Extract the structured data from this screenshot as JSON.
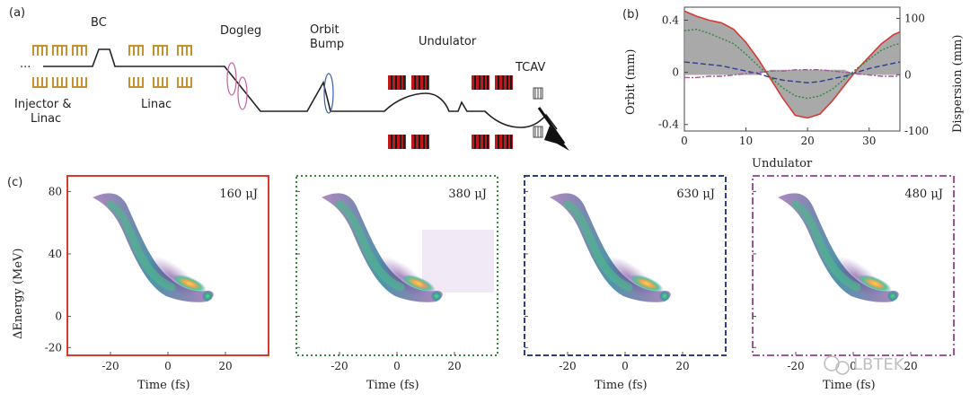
{
  "panel_a": {
    "label": "(a)",
    "dots": "···",
    "bc": "BC",
    "injector_line1": "Injector &",
    "injector_line2": "Linac",
    "linac": "Linac",
    "dogleg": "Dogleg",
    "orbit_bump_line1": "Orbit",
    "orbit_bump_line2": "Bump",
    "undulator": "Undulator",
    "tcav": "TCAV",
    "colors": {
      "beamline": "#222222",
      "cavity": "#c8912f",
      "magnet": "#c0171b",
      "dogleg_ring": "#c45fa0",
      "bump_ring": "#3b5fa8"
    }
  },
  "panel_b": {
    "label": "(b)",
    "xlabel": "Undulator",
    "ylabel_left": "Orbit (mm)",
    "ylabel_right": "Dispersion (mm)",
    "xticks": [
      "0",
      "10",
      "20",
      "30"
    ],
    "yticks_left": [
      "0.4",
      "0",
      "-0.4"
    ],
    "yticks_right": [
      "100",
      "0",
      "-100"
    ]
  },
  "panel_c": {
    "label": "(c)",
    "ylabel": "ΔEnergy (MeV)",
    "xlabel": "Time (fs)",
    "yticks": [
      "80",
      "40",
      "0",
      "-20"
    ],
    "xticks": [
      "-20",
      "0",
      "20"
    ],
    "plots": [
      {
        "energy": "160 μJ",
        "frame_color": "#d93a30",
        "frame_style": "solid"
      },
      {
        "energy": "380 μJ",
        "frame_color": "#2f8a3c",
        "frame_style": "dotted"
      },
      {
        "energy": "630 μJ",
        "frame_color": "#2c3f8f",
        "frame_style": "dashed"
      },
      {
        "energy": "480 μJ",
        "frame_color": "#a3559c",
        "frame_style": "dashdot"
      }
    ]
  },
  "watermark": "LBTEK",
  "chart_data": [
    {
      "type": "line",
      "title": "",
      "xlabel": "Undulator",
      "ylabel": "Orbit (mm)",
      "ylabel_right": "Dispersion (mm)",
      "xlim": [
        0,
        35
      ],
      "ylim": [
        -0.45,
        0.5
      ],
      "ylim_right": [
        -100,
        120
      ],
      "x": [
        0,
        2,
        4,
        6,
        8,
        10,
        12,
        14,
        16,
        18,
        20,
        22,
        24,
        26,
        28,
        30,
        32,
        34,
        35
      ],
      "series": [
        {
          "color": "#d63a33",
          "axis": "left",
          "values": [
            0.47,
            0.43,
            0.4,
            0.38,
            0.33,
            0.23,
            0.1,
            -0.05,
            -0.2,
            -0.33,
            -0.35,
            -0.32,
            -0.22,
            -0.1,
            0.02,
            0.12,
            0.22,
            0.29,
            0.31
          ]
        },
        {
          "color": "#2f8a3c",
          "axis": "left",
          "values": [
            0.32,
            0.33,
            0.3,
            0.26,
            0.22,
            0.14,
            0.05,
            -0.04,
            -0.12,
            -0.18,
            -0.2,
            -0.18,
            -0.13,
            -0.05,
            0.03,
            0.1,
            0.17,
            0.21,
            0.22
          ]
        },
        {
          "color": "#2c3f8f",
          "axis": "left",
          "values": [
            0.08,
            0.07,
            0.06,
            0.05,
            0.03,
            0.01,
            -0.01,
            -0.04,
            -0.06,
            -0.07,
            -0.08,
            -0.07,
            -0.05,
            -0.03,
            0.0,
            0.03,
            0.05,
            0.07,
            0.08
          ]
        },
        {
          "color": "#a3559c",
          "axis": "left",
          "values": [
            -0.04,
            -0.04,
            -0.03,
            -0.03,
            -0.02,
            -0.01,
            0.0,
            0.01,
            0.01,
            0.02,
            0.02,
            0.02,
            0.01,
            0.0,
            -0.01,
            -0.02,
            -0.03,
            -0.03,
            -0.03
          ]
        }
      ],
      "fill": {
        "between": "red series and its mirror",
        "color": "#9a9a9a"
      }
    },
    {
      "type": "heatmap",
      "xlabel": "Time (fs)",
      "ylabel": "ΔEnergy (MeV)",
      "xlim": [
        -35,
        35
      ],
      "ylim": [
        -25,
        90
      ],
      "annotation": "160 μJ"
    },
    {
      "type": "heatmap",
      "xlabel": "Time (fs)",
      "ylabel": "",
      "xlim": [
        -35,
        35
      ],
      "ylim": [
        -25,
        90
      ],
      "annotation": "380 μJ"
    },
    {
      "type": "heatmap",
      "xlabel": "Time (fs)",
      "ylabel": "",
      "xlim": [
        -35,
        35
      ],
      "ylim": [
        -25,
        90
      ],
      "annotation": "630 μJ"
    },
    {
      "type": "heatmap",
      "xlabel": "Time (fs)",
      "ylabel": "",
      "xlim": [
        -35,
        35
      ],
      "ylim": [
        -25,
        90
      ],
      "annotation": "480 μJ"
    }
  ]
}
